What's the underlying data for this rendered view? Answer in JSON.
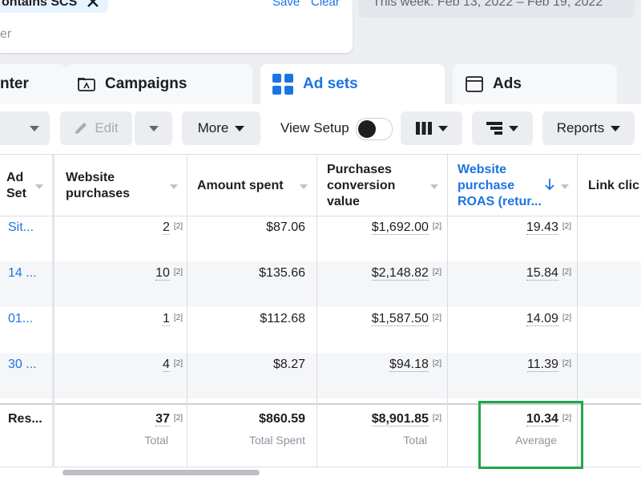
{
  "filter": {
    "chip": "ontains SCS",
    "save": "Save",
    "clear": "Clear",
    "placeholder": "er"
  },
  "date_range": "This week: Feb 13, 2022 – Feb 19, 2022",
  "tabs": [
    "nter",
    "Campaigns",
    "Ad sets",
    "Ads"
  ],
  "toolbar": {
    "edit": "Edit",
    "more": "More",
    "view_setup": "View Setup",
    "reports": "Reports"
  },
  "table": {
    "columns": [
      "Ad Set",
      "Website purchases",
      "Amount spent",
      "Purchases conversion value",
      "Website purchase ROAS (retur...",
      "Link clic"
    ],
    "footnote": "[2]",
    "rows": [
      [
        "Sit...",
        "2",
        "$87.06",
        "$1,692.00",
        "19.43"
      ],
      [
        "14 ...",
        "10",
        "$135.66",
        "$2,148.82",
        "15.84"
      ],
      [
        "01...",
        "1",
        "$112.68",
        "$1,587.50",
        "14.09"
      ],
      [
        "30 ...",
        "4",
        "$8.27",
        "$94.18",
        "11.39"
      ]
    ],
    "summary": {
      "label": "Res...",
      "cells": [
        {
          "value": "37",
          "caption": "Total"
        },
        {
          "value": "$860.59",
          "caption": "Total Spent"
        },
        {
          "value": "$8,901.85",
          "caption": "Total"
        },
        {
          "value": "10.34",
          "caption": "Average"
        }
      ]
    }
  }
}
